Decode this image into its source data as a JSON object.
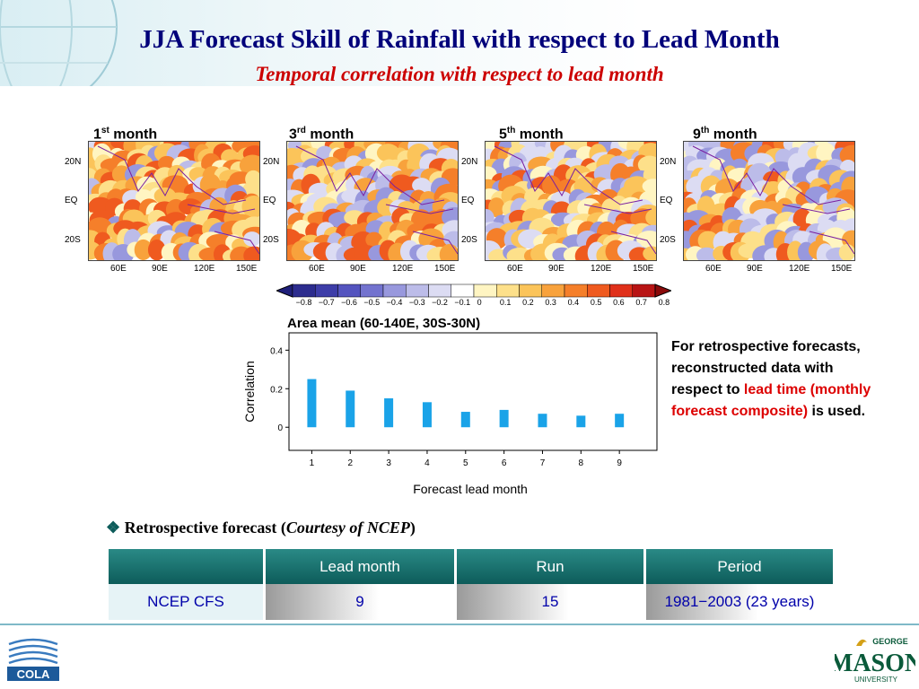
{
  "header": {
    "title": "JJA Forecast Skill of Rainfall with respect to Lead Month",
    "subtitle": "Temporal correlation with respect to lead month"
  },
  "maps": [
    {
      "num": "1",
      "sup": "st",
      "word": "month"
    },
    {
      "num": "3",
      "sup": "rd",
      "word": "month"
    },
    {
      "num": "5",
      "sup": "th",
      "word": "month"
    },
    {
      "num": "9",
      "sup": "th",
      "word": "month"
    }
  ],
  "map_axes": {
    "lat_labels": [
      "20N",
      "EQ",
      "20S"
    ],
    "lon_labels": [
      "60E",
      "90E",
      "120E",
      "150E"
    ]
  },
  "colorbar": {
    "labels": [
      "−0.8",
      "−0.7",
      "−0.6",
      "−0.5",
      "−0.4",
      "−0.3",
      "−0.2",
      "−0.1",
      "0",
      "0.1",
      "0.2",
      "0.3",
      "0.4",
      "0.5",
      "0.6",
      "0.7",
      "0.8"
    ],
    "colors": [
      "#1f1f7a",
      "#2c2c8e",
      "#3d3da8",
      "#5454bf",
      "#7373cf",
      "#9898dd",
      "#bcbce9",
      "#dcdcf3",
      "#ffffff",
      "#fff5c2",
      "#fde08a",
      "#fbc45a",
      "#f8a23c",
      "#f57f2a",
      "#ef5a1f",
      "#e0301a",
      "#b81414",
      "#8a0a0a"
    ]
  },
  "chart_data": {
    "type": "bar",
    "title": "Area mean (60-140E, 30S-30N)",
    "xlabel": "Forecast lead month",
    "ylabel": "Correlation",
    "categories": [
      "1",
      "2",
      "3",
      "4",
      "5",
      "6",
      "7",
      "8",
      "9"
    ],
    "values": [
      0.25,
      0.19,
      0.15,
      0.13,
      0.08,
      0.09,
      0.07,
      0.06,
      0.07
    ],
    "yticks": [
      "0",
      "0.2",
      "0.4"
    ],
    "ylim": [
      -0.12,
      0.49
    ],
    "bar_color": "#1aa3e8"
  },
  "note": {
    "part1": "For retrospective forecasts, reconstructed data with respect to ",
    "highlight": "lead time (monthly forecast composite)",
    "part2": " is used."
  },
  "bullet": {
    "symbol": "❖",
    "text": "Retrospective forecast (",
    "courtesy": "Courtesy of NCEP",
    "close": ")"
  },
  "table": {
    "headers": [
      "",
      "Lead month",
      "Run",
      "Period"
    ],
    "rows": [
      [
        "NCEP CFS",
        "9",
        "15",
        "1981−2003 (23 years)"
      ]
    ]
  },
  "footer": {
    "left_logo": "COLA",
    "right_logo_top": "GEORGE",
    "right_logo_main": "MASON",
    "right_logo_bottom": "UNIVERSITY"
  },
  "colors": {
    "title": "#00007a",
    "subtitle": "#cc0000",
    "table_header": "#0d5c5a",
    "table_value": "#0000aa"
  }
}
